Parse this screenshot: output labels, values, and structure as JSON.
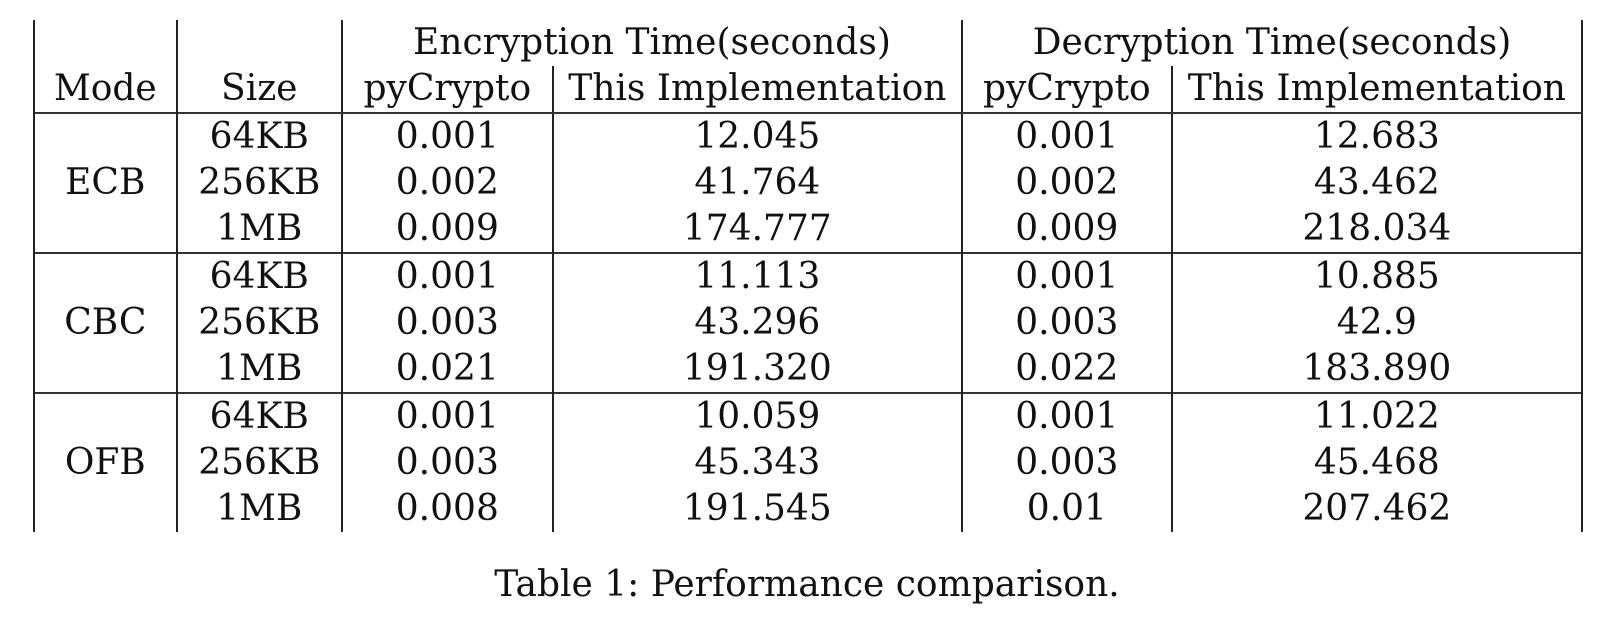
{
  "table": {
    "group_headers": [
      "Encryption Time(seconds)",
      "Decryption Time(seconds)"
    ],
    "column_headers": [
      "Mode",
      "Size",
      "pyCrypto",
      "This Implementation",
      "pyCrypto",
      "This Implementation"
    ],
    "groups": [
      {
        "mode": "ECB",
        "rows": [
          {
            "size": "64KB",
            "enc_pycrypto": "0.001",
            "enc_impl": "12.045",
            "dec_pycrypto": "0.001",
            "dec_impl": "12.683"
          },
          {
            "size": "256KB",
            "enc_pycrypto": "0.002",
            "enc_impl": "41.764",
            "dec_pycrypto": "0.002",
            "dec_impl": "43.462"
          },
          {
            "size": "1MB",
            "enc_pycrypto": "0.009",
            "enc_impl": "174.777",
            "dec_pycrypto": "0.009",
            "dec_impl": "218.034"
          }
        ]
      },
      {
        "mode": "CBC",
        "rows": [
          {
            "size": "64KB",
            "enc_pycrypto": "0.001",
            "enc_impl": "11.113",
            "dec_pycrypto": "0.001",
            "dec_impl": "10.885"
          },
          {
            "size": "256KB",
            "enc_pycrypto": "0.003",
            "enc_impl": "43.296",
            "dec_pycrypto": "0.003",
            "dec_impl": "42.9"
          },
          {
            "size": "1MB",
            "enc_pycrypto": "0.021",
            "enc_impl": "191.320",
            "dec_pycrypto": "0.022",
            "dec_impl": "183.890"
          }
        ]
      },
      {
        "mode": "OFB",
        "rows": [
          {
            "size": "64KB",
            "enc_pycrypto": "0.001",
            "enc_impl": "10.059",
            "dec_pycrypto": "0.001",
            "dec_impl": "11.022"
          },
          {
            "size": "256KB",
            "enc_pycrypto": "0.003",
            "enc_impl": "45.343",
            "dec_pycrypto": "0.003",
            "dec_impl": "45.468"
          },
          {
            "size": "1MB",
            "enc_pycrypto": "0.008",
            "enc_impl": "191.545",
            "dec_pycrypto": "0.01",
            "dec_impl": "207.462"
          }
        ]
      }
    ]
  },
  "caption": "Table 1: Performance comparison."
}
